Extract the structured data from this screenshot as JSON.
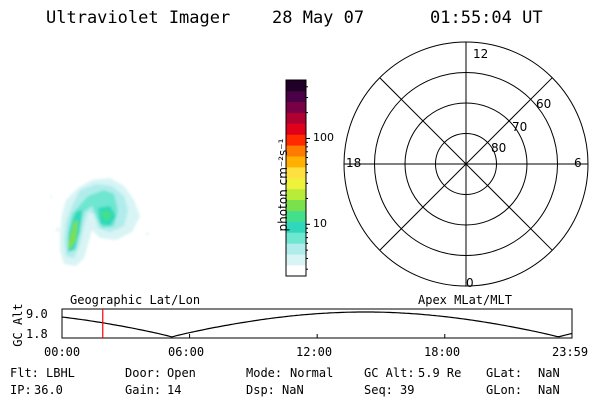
{
  "header": {
    "title": "Ultraviolet Imager",
    "date": "28 May 07",
    "time": "01:55:04 UT"
  },
  "colorbar": {
    "axis_label": "photon cm⁻²s⁻¹",
    "ticks": [
      {
        "value": 10,
        "label": "10"
      },
      {
        "value": 100,
        "label": "100"
      }
    ],
    "range": [
      2.5,
      480
    ],
    "scale": "log",
    "colors": [
      "#ffffff",
      "#d8f4f4",
      "#b0ecec",
      "#6ee6d0",
      "#2fd8bc",
      "#42e08a",
      "#7ae04c",
      "#b8ec3a",
      "#eef23a",
      "#ffe040",
      "#ffb000",
      "#ff7a00",
      "#ff2a00",
      "#e0001a",
      "#b00030",
      "#7a0046",
      "#4a0046",
      "#200026"
    ]
  },
  "polar_grid": {
    "mlt_labels": [
      "12",
      "18",
      "6",
      "0"
    ],
    "lat_labels": [
      "60",
      "70",
      "80"
    ]
  },
  "timeline": {
    "left_label": "Geographic Lat/Lon",
    "right_label": "Apex MLat/MLT",
    "ylabel": "GC Alt",
    "ytick_top": "9.0",
    "ytick_bottom": "1.8",
    "x_ticks": [
      "00:00",
      "06:00",
      "12:00",
      "18:00",
      "23:59"
    ],
    "marker_time": "01:55",
    "marker_color": "#ff0000"
  },
  "status": {
    "flt_label": "Flt:",
    "flt_value": "LBHL",
    "door_label": "Door:",
    "door_value": "Open",
    "mode_label": "Mode:",
    "mode_value": "Normal",
    "gcalt_label": "GC Alt:",
    "gcalt_value": "5.9 Re",
    "glat_label": "GLat:",
    "glat_value": "NaN",
    "ip_label": "IP:",
    "ip_value": "36.0",
    "gain_label": "Gain:",
    "gain_value": "14",
    "dsp_label": "Dsp:",
    "dsp_value": "NaN",
    "seq_label": "Seq:",
    "seq_value": "39",
    "glon_label": "GLon:",
    "glon_value": "NaN"
  }
}
